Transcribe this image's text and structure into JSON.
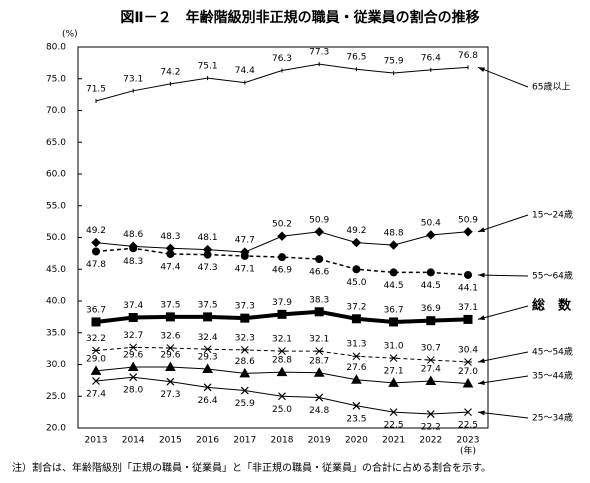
{
  "chart_data": {
    "type": "line",
    "title": "図Ⅱ－２　年齢階級別非正規の職員・従業員の割合の推移",
    "y_unit": "(%)",
    "x_unit": "(年)",
    "note": "注）割合は、年齢階級別「正規の職員・従業員」と「非正規の職員・従業員」の合計に占める割合を示す。",
    "categories": [
      "2013",
      "2014",
      "2015",
      "2016",
      "2017",
      "2018",
      "2019",
      "2020",
      "2021",
      "2022",
      "2023"
    ],
    "ylim": [
      20,
      80
    ],
    "yticks": [
      {
        "value": 20,
        "label": "20.0"
      },
      {
        "value": 25,
        "label": "25.0"
      },
      {
        "value": 30,
        "label": "30.0"
      },
      {
        "value": 35,
        "label": "35.0"
      },
      {
        "value": 40,
        "label": "40.0"
      },
      {
        "value": 45,
        "label": "45.0"
      },
      {
        "value": 50,
        "label": "50.0"
      },
      {
        "value": 55,
        "label": "55.0"
      },
      {
        "value": 60,
        "label": "60.0"
      },
      {
        "value": 65,
        "label": "65.0"
      },
      {
        "value": 70,
        "label": "70.0"
      },
      {
        "value": 75,
        "label": "75.0"
      },
      {
        "value": 80,
        "label": "80.0"
      }
    ],
    "series": [
      {
        "name": "65歳以上",
        "color": "#000000",
        "marker": "tick",
        "dash": false,
        "width": 1,
        "values": [
          71.5,
          73.1,
          74.2,
          75.1,
          74.4,
          76.3,
          77.3,
          76.5,
          75.9,
          76.4,
          76.8
        ],
        "value_labels": [
          "71.5",
          "73.1",
          "74.2",
          "75.1",
          "74.4",
          "76.3",
          "77.3",
          "76.5",
          "75.9",
          "76.4",
          "76.8"
        ]
      },
      {
        "name": "15～24歳",
        "color": "#000000",
        "marker": "diamond",
        "dash": false,
        "width": 1,
        "values": [
          49.2,
          48.6,
          48.3,
          48.1,
          47.7,
          50.2,
          50.9,
          49.2,
          48.8,
          50.4,
          50.9
        ],
        "value_labels": [
          "49.2",
          "48.6",
          "48.3",
          "48.1",
          "47.7",
          "50.2",
          "50.9",
          "49.2",
          "48.8",
          "50.4",
          "50.9"
        ]
      },
      {
        "name": "55～64歳",
        "color": "#000000",
        "marker": "circle",
        "dash": true,
        "width": 1.5,
        "values": [
          47.8,
          48.3,
          47.4,
          47.3,
          47.1,
          46.9,
          46.6,
          45.0,
          44.5,
          44.5,
          44.1
        ],
        "value_labels": [
          "47.8",
          "48.3",
          "47.4",
          "47.3",
          "47.1",
          "46.9",
          "46.6",
          "45.0",
          "44.5",
          "44.5",
          "44.1"
        ]
      },
      {
        "name": "総　数",
        "color": "#000000",
        "marker": "square",
        "dash": false,
        "width": 4,
        "values": [
          36.7,
          37.4,
          37.5,
          37.5,
          37.3,
          37.9,
          38.3,
          37.2,
          36.7,
          36.9,
          37.1
        ],
        "value_labels": [
          "36.7",
          "37.4",
          "37.5",
          "37.5",
          "37.3",
          "37.9",
          "38.3",
          "37.2",
          "36.7",
          "36.9",
          "37.1"
        ]
      },
      {
        "name": "45～54歳",
        "color": "#000000",
        "marker": "star",
        "dash": true,
        "width": 1,
        "values": [
          32.2,
          32.7,
          32.6,
          32.4,
          32.3,
          32.1,
          32.1,
          31.3,
          31.0,
          30.7,
          30.4
        ],
        "value_labels": [
          "32.2",
          "32.7",
          "32.6",
          "32.4",
          "32.3",
          "32.1",
          "32.1",
          "31.3",
          "31.0",
          "30.7",
          "30.4"
        ]
      },
      {
        "name": "35～44歳",
        "color": "#000000",
        "marker": "triangle",
        "dash": false,
        "width": 1,
        "values": [
          29.0,
          29.6,
          29.6,
          29.3,
          28.6,
          28.8,
          28.7,
          27.6,
          27.1,
          27.4,
          27.0
        ],
        "value_labels": [
          "29.0",
          "29.6",
          "29.6",
          "29.3",
          "28.6",
          "28.8",
          "28.7",
          "27.6",
          "27.1",
          "27.4",
          "27.0"
        ]
      },
      {
        "name": "25～34歳",
        "color": "#000000",
        "marker": "x",
        "dash": false,
        "width": 1,
        "values": [
          27.4,
          28.0,
          27.3,
          26.4,
          25.9,
          25.0,
          24.8,
          23.5,
          22.5,
          22.2,
          22.5
        ],
        "value_labels": [
          "27.4",
          "28.0",
          "27.3",
          "26.4",
          "25.9",
          "25.0",
          "24.8",
          "23.5",
          "22.5",
          "22.2",
          "22.5"
        ]
      }
    ]
  }
}
